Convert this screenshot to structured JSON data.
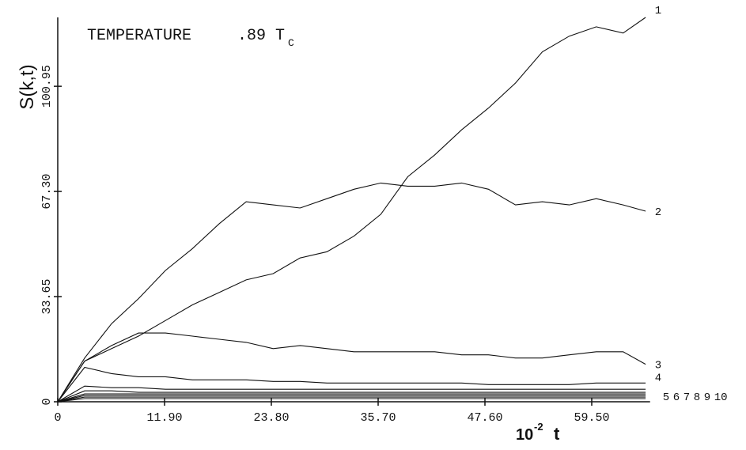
{
  "chart_data": {
    "type": "line",
    "title": "TEMPERATURE",
    "annotation": ".89 T",
    "annotation_subscript": "C",
    "y_label": "S(k,t)",
    "x_label_base": "10",
    "x_label_exponent": "-2",
    "x_label_var": "t",
    "x": [
      0,
      3,
      6,
      9,
      12,
      15,
      18,
      21,
      24,
      27,
      30,
      33,
      36,
      39,
      42,
      45,
      48,
      51,
      54,
      57,
      60,
      63,
      65.5
    ],
    "series": [
      {
        "name": "1",
        "color": "#111111",
        "values": [
          0,
          13,
          17,
          21,
          26,
          31,
          35,
          39,
          41,
          46,
          48,
          53,
          60,
          72,
          79,
          87,
          94,
          102,
          112,
          117,
          120,
          118,
          123
        ]
      },
      {
        "name": "2",
        "color": "#111111",
        "values": [
          0,
          14,
          25,
          33,
          42,
          49,
          57,
          64,
          63,
          62,
          65,
          68,
          70,
          69,
          69,
          70,
          68,
          63,
          64,
          63,
          65,
          63,
          61
        ]
      },
      {
        "name": "3",
        "color": "#111111",
        "values": [
          0,
          13,
          18,
          22,
          22,
          21,
          20,
          19,
          17,
          18,
          17,
          16,
          16,
          16,
          16,
          15,
          15,
          14,
          14,
          15,
          16,
          16,
          12
        ]
      },
      {
        "name": "4",
        "color": "#111111",
        "values": [
          0,
          11,
          9,
          8,
          8,
          7,
          7,
          7,
          6.5,
          6.5,
          6,
          6,
          6,
          6,
          6,
          6,
          5.5,
          5.5,
          5.5,
          5.5,
          6,
          6,
          6
        ]
      },
      {
        "name": "5",
        "color": "#111111",
        "values": [
          0,
          5,
          4.5,
          4.5,
          4,
          4,
          4,
          4,
          4,
          4,
          4,
          4,
          4,
          4,
          4,
          4,
          4,
          4,
          4,
          4,
          4,
          4,
          4
        ]
      },
      {
        "name": "6",
        "color": "#111111",
        "values": [
          0,
          3.5,
          3.5,
          3,
          3,
          3,
          3,
          3,
          3,
          3,
          3,
          3,
          3,
          3,
          3,
          3,
          3,
          3,
          3,
          3,
          3,
          3,
          3
        ]
      },
      {
        "name": "7",
        "color": "#111111",
        "values": [
          0,
          2.5,
          2.5,
          2.5,
          2.5,
          2.5,
          2.5,
          2.5,
          2.5,
          2.5,
          2.5,
          2.5,
          2.5,
          2.5,
          2.5,
          2.5,
          2.5,
          2.5,
          2.5,
          2.5,
          2.5,
          2.5,
          2.5
        ]
      },
      {
        "name": "8",
        "color": "#111111",
        "values": [
          0,
          2,
          2,
          2,
          2,
          2,
          2,
          2,
          2,
          2,
          2,
          2,
          2,
          2,
          2,
          2,
          2,
          2,
          2,
          2,
          2,
          2,
          2
        ]
      },
      {
        "name": "9",
        "color": "#111111",
        "values": [
          0,
          1.5,
          1.5,
          1.5,
          1.5,
          1.5,
          1.5,
          1.5,
          1.5,
          1.5,
          1.5,
          1.5,
          1.5,
          1.5,
          1.5,
          1.5,
          1.5,
          1.5,
          1.5,
          1.5,
          1.5,
          1.5,
          1.5
        ]
      },
      {
        "name": "10",
        "color": "#111111",
        "values": [
          0,
          1,
          1,
          1,
          1,
          1,
          1,
          1,
          1,
          1,
          1,
          1,
          1,
          1,
          1,
          1,
          1,
          1,
          1,
          1,
          1,
          1,
          1
        ]
      }
    ],
    "xlim": [
      0,
      66
    ],
    "ylim": [
      0,
      123
    ],
    "xticks": [
      0,
      {
        "value": 11.9,
        "label": "11.90"
      },
      {
        "value": 23.8,
        "label": "23.80"
      },
      {
        "value": 35.7,
        "label": "35.70"
      },
      {
        "value": 47.6,
        "label": "47.60"
      },
      {
        "value": 59.5,
        "label": "59.50"
      }
    ],
    "yticks": [
      0,
      33.65,
      {
        "value": 67.3,
        "label": "67.30"
      },
      100.95
    ],
    "grid": false
  }
}
